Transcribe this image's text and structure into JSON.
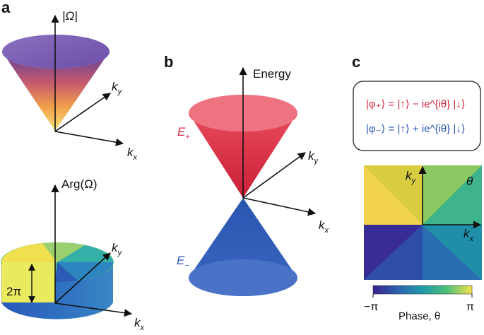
{
  "panels": {
    "a": {
      "label": "a",
      "top_axis_label": "|Ω|",
      "bottom_axis_label": "Arg(Ω)",
      "kx": "k",
      "kx_sub": "x",
      "ky": "k",
      "ky_sub": "y",
      "winding_label": "2π"
    },
    "b": {
      "label": "b",
      "energy_label": "Energy",
      "upper_band": "E",
      "upper_sub": "+",
      "lower_band": "E",
      "lower_sub": "−",
      "kx": "k",
      "kx_sub": "x",
      "ky": "k",
      "ky_sub": "y",
      "upper_color": "#e0364a",
      "lower_color": "#2f5bb5"
    },
    "c": {
      "label": "c",
      "eq_plus": "|φ₊⟩ = |↑⟩ − ie^{iθ} |↓⟩",
      "eq_minus": "|φ₋⟩ = |↑⟩ + ie^{iθ} |↓⟩",
      "theta_label": "θ",
      "kx": "k",
      "kx_sub": "x",
      "ky": "k",
      "ky_sub": "y",
      "colorbar_min": "−π",
      "colorbar_max": "π",
      "colorbar_label": "Phase, θ"
    }
  },
  "colors": {
    "colormap": [
      "#3b1f8f",
      "#2c62b0",
      "#1e9ba8",
      "#4fbf78",
      "#f3e34a"
    ]
  }
}
